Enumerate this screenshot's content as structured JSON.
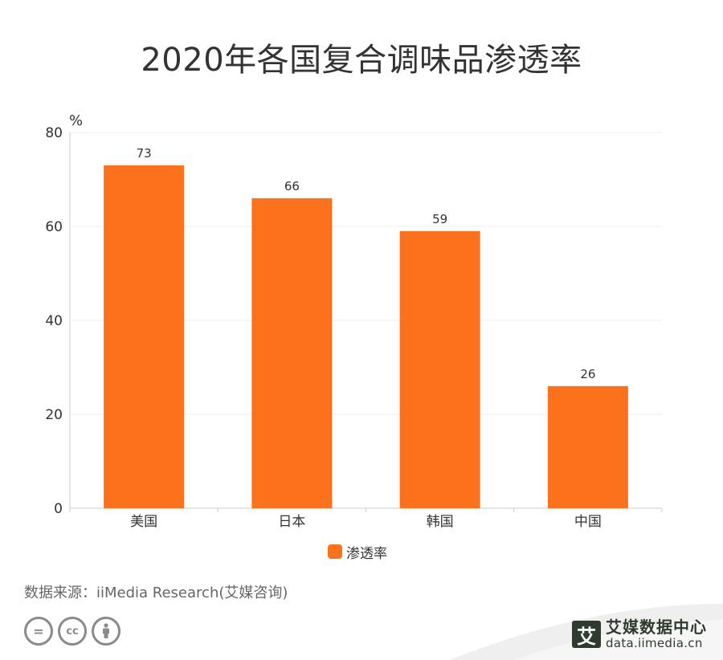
{
  "title": "2020年各国复合调味品渗透率",
  "chart_data": {
    "type": "bar",
    "categories": [
      "美国",
      "日本",
      "韩国",
      "中国"
    ],
    "series": [
      {
        "name": "渗透率",
        "values": [
          73,
          66,
          59,
          26
        ],
        "color": "#fc711b"
      }
    ],
    "ylabel": "%",
    "ylim": [
      0,
      80
    ],
    "yticks": [
      0,
      20,
      40,
      60,
      80
    ],
    "grid": true,
    "legend_position": "bottom",
    "data_labels": true
  },
  "legend": {
    "label": "渗透率",
    "color": "#fc711b"
  },
  "source": "数据来源：iiMedia Research(艾媒咨询)",
  "brand": {
    "name_cn": "艾媒数据中心",
    "url": "data.iimedia.cn",
    "mark": "艾"
  },
  "license_icons": [
    "equals-icon",
    "cc-icon",
    "person-icon"
  ]
}
